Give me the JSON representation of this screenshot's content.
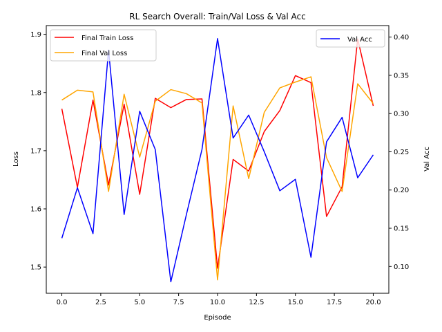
{
  "chart_data": {
    "type": "line",
    "title": "RL Search Overall: Train/Val Loss & Val Acc",
    "xlabel": "Episode",
    "ylabel_left": "Loss",
    "ylabel_right": "Val Acc",
    "xlim": [
      -1,
      21
    ],
    "ylim_left": [
      1.455,
      1.915
    ],
    "ylim_right": [
      0.065,
      0.415
    ],
    "x_ticks": [
      0.0,
      2.5,
      5.0,
      7.5,
      10.0,
      12.5,
      15.0,
      17.5,
      20.0
    ],
    "x_tick_labels": [
      "0.0",
      "2.5",
      "5.0",
      "7.5",
      "10.0",
      "12.5",
      "15.0",
      "17.5",
      "20.0"
    ],
    "y_left_ticks": [
      1.5,
      1.6,
      1.7,
      1.8,
      1.9
    ],
    "y_left_tick_labels": [
      "1.5",
      "1.6",
      "1.7",
      "1.8",
      "1.9"
    ],
    "y_right_ticks": [
      0.1,
      0.15,
      0.2,
      0.25,
      0.3,
      0.35,
      0.4
    ],
    "y_right_tick_labels": [
      "0.10",
      "0.15",
      "0.20",
      "0.25",
      "0.30",
      "0.35",
      "0.40"
    ],
    "x": [
      0,
      1,
      2,
      3,
      4,
      5,
      6,
      7,
      8,
      9,
      10,
      11,
      12,
      13,
      14,
      15,
      16,
      17,
      18,
      19,
      20
    ],
    "series": [
      {
        "name": "Final Train Loss",
        "axis": "left",
        "color": "#ff0000",
        "values": [
          1.772,
          1.637,
          1.787,
          1.641,
          1.78,
          1.625,
          1.79,
          1.774,
          1.788,
          1.789,
          1.498,
          1.685,
          1.665,
          1.733,
          1.769,
          1.829,
          1.817,
          1.587,
          1.638,
          1.892,
          1.777
        ]
      },
      {
        "name": "Final Val Loss",
        "axis": "left",
        "color": "#ffa500",
        "values": [
          1.787,
          1.804,
          1.801,
          1.63,
          1.797,
          1.689,
          1.785,
          1.805,
          1.798,
          1.782,
          1.478,
          1.777,
          1.652,
          1.766,
          1.808,
          1.818,
          1.827,
          1.688,
          1.63,
          1.815,
          1.781
        ]
      },
      {
        "name": "Val Acc",
        "axis": "right",
        "color": "#0000ff",
        "values": [
          0.137,
          0.203,
          0.143,
          0.383,
          0.168,
          0.303,
          0.253,
          0.08,
          0.168,
          0.253,
          0.398,
          0.268,
          0.298,
          0.25,
          0.199,
          0.214,
          0.112,
          0.263,
          0.295,
          0.216,
          0.246
        ]
      }
    ],
    "legend_left_position": "top-left",
    "legend_right_position": "top-right",
    "grid": false
  }
}
